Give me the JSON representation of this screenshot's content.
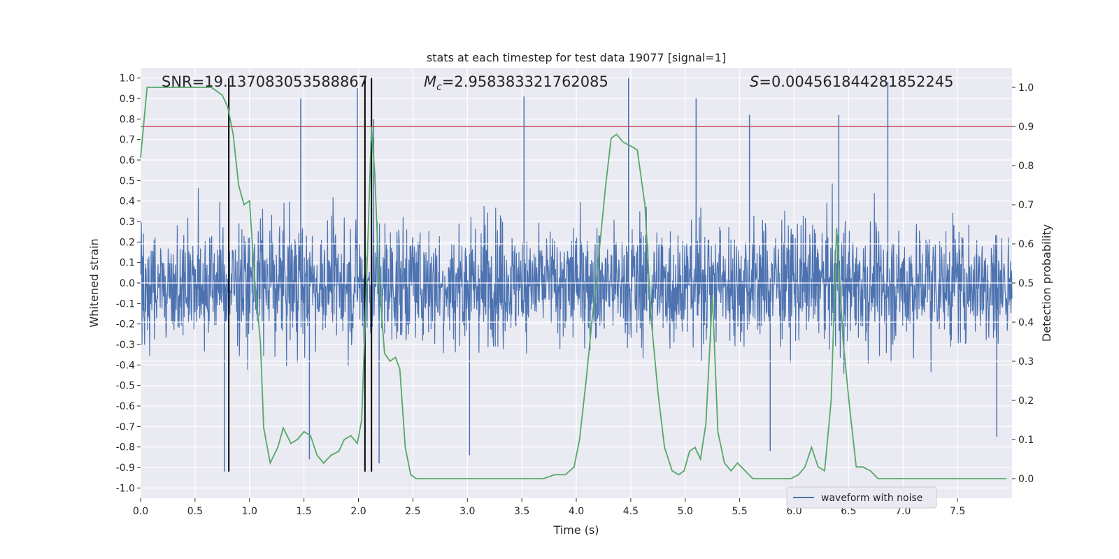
{
  "chart_data": {
    "type": "line",
    "title": "stats at each timestep for test data 19077 [signal=1]",
    "xlabel": "Time (s)",
    "ylabel_left": "Whitened strain",
    "ylabel_right": "Detection probability",
    "xlim": [
      0.0,
      8.0
    ],
    "ylim_left": [
      -1.05,
      1.05
    ],
    "ylim_right": [
      -0.05,
      1.05
    ],
    "x_ticks": [
      "0.0",
      "0.5",
      "1.0",
      "1.5",
      "2.0",
      "2.5",
      "3.0",
      "3.5",
      "4.0",
      "4.5",
      "5.0",
      "5.5",
      "6.0",
      "6.5",
      "7.0",
      "7.5"
    ],
    "x_tick_values": [
      0.0,
      0.5,
      1.0,
      1.5,
      2.0,
      2.5,
      3.0,
      3.5,
      4.0,
      4.5,
      5.0,
      5.5,
      6.0,
      6.5,
      7.0,
      7.5
    ],
    "y_left_ticks": [
      "-1.0",
      "-0.9",
      "-0.8",
      "-0.7",
      "-0.6",
      "-0.5",
      "-0.4",
      "-0.3",
      "-0.2",
      "-0.1",
      "0.0",
      "0.1",
      "0.2",
      "0.3",
      "0.4",
      "0.5",
      "0.6",
      "0.7",
      "0.8",
      "0.9",
      "1.0"
    ],
    "y_left_tick_values": [
      -1.0,
      -0.9,
      -0.8,
      -0.7,
      -0.6,
      -0.5,
      -0.4,
      -0.3,
      -0.2,
      -0.1,
      0.0,
      0.1,
      0.2,
      0.3,
      0.4,
      0.5,
      0.6,
      0.7,
      0.8,
      0.9,
      1.0
    ],
    "y_right_ticks": [
      "0.0",
      "0.1",
      "0.2",
      "0.3",
      "0.4",
      "0.5",
      "0.6",
      "0.7",
      "0.8",
      "0.9",
      "1.0"
    ],
    "y_right_tick_values": [
      0.0,
      0.1,
      0.2,
      0.3,
      0.4,
      0.5,
      0.6,
      0.7,
      0.8,
      0.9,
      1.0
    ],
    "annotations": {
      "snr": "SNR=19.137083053588867",
      "mc_symbol": "M",
      "mc_sub": "c",
      "mc_value": "=2.958383321762085",
      "s_symbol": "S",
      "s_value": "=0.004561844281852245"
    },
    "threshold": {
      "axis": "right",
      "value": 0.9,
      "color": "#c44e52"
    },
    "vertical_lines": {
      "x": [
        0.81,
        2.06,
        2.12
      ],
      "color": "#000000"
    },
    "series": [
      {
        "name": "waveform with noise",
        "axis": "left",
        "color": "#4c72b0",
        "style": "dense-noise",
        "spikes": [
          {
            "x": 0.81,
            "y": 0.93
          },
          {
            "x": 1.47,
            "y": 0.9
          },
          {
            "x": 1.99,
            "y": 0.95
          },
          {
            "x": 2.14,
            "y": 0.8
          },
          {
            "x": 3.52,
            "y": 0.91
          },
          {
            "x": 4.48,
            "y": 1.0
          },
          {
            "x": 5.1,
            "y": 0.9
          },
          {
            "x": 5.59,
            "y": 0.82
          },
          {
            "x": 6.41,
            "y": 0.82
          },
          {
            "x": 6.86,
            "y": 0.98
          },
          {
            "x": 0.77,
            "y": -0.92
          },
          {
            "x": 1.55,
            "y": -0.86
          },
          {
            "x": 2.19,
            "y": -0.88
          },
          {
            "x": 3.02,
            "y": -0.84
          },
          {
            "x": 5.78,
            "y": -0.82
          },
          {
            "x": 7.86,
            "y": -0.75
          }
        ]
      },
      {
        "name": "detection probability",
        "axis": "right",
        "color": "#55a868",
        "x": [
          0.0,
          0.06,
          0.12,
          0.2,
          0.3,
          0.4,
          0.5,
          0.55,
          0.6,
          0.65,
          0.7,
          0.75,
          0.8,
          0.85,
          0.9,
          0.95,
          1.0,
          1.05,
          1.1,
          1.13,
          1.19,
          1.26,
          1.31,
          1.38,
          1.44,
          1.5,
          1.56,
          1.62,
          1.68,
          1.75,
          1.82,
          1.87,
          1.93,
          1.99,
          2.03,
          2.08,
          2.12,
          2.15,
          2.19,
          2.24,
          2.29,
          2.34,
          2.38,
          2.43,
          2.48,
          2.53,
          2.6,
          2.7,
          2.8,
          2.9,
          3.0,
          3.1,
          3.2,
          3.3,
          3.4,
          3.5,
          3.6,
          3.7,
          3.8,
          3.9,
          3.98,
          4.03,
          4.09,
          4.15,
          4.21,
          4.27,
          4.32,
          4.37,
          4.43,
          4.5,
          4.56,
          4.63,
          4.69,
          4.75,
          4.81,
          4.88,
          4.94,
          4.99,
          5.04,
          5.09,
          5.14,
          5.19,
          5.25,
          5.3,
          5.36,
          5.42,
          5.48,
          5.55,
          5.62,
          5.68,
          5.75,
          5.82,
          5.9,
          5.97,
          6.04,
          6.1,
          6.16,
          6.22,
          6.28,
          6.34,
          6.39,
          6.45,
          6.51,
          6.57,
          6.63,
          6.7,
          6.77,
          6.85,
          6.95,
          7.05,
          7.15,
          7.25,
          7.3,
          7.4,
          7.5,
          7.6,
          7.7,
          7.8,
          7.95
        ],
        "y": [
          0.82,
          1.0,
          1.0,
          1.0,
          1.0,
          1.0,
          1.0,
          1.0,
          1.0,
          1.0,
          0.99,
          0.98,
          0.95,
          0.88,
          0.75,
          0.7,
          0.71,
          0.5,
          0.35,
          0.13,
          0.04,
          0.08,
          0.13,
          0.09,
          0.1,
          0.12,
          0.11,
          0.06,
          0.04,
          0.06,
          0.07,
          0.1,
          0.11,
          0.09,
          0.15,
          0.55,
          0.9,
          0.78,
          0.5,
          0.32,
          0.3,
          0.31,
          0.28,
          0.08,
          0.01,
          0.0,
          0.0,
          0.0,
          0.0,
          0.0,
          0.0,
          0.0,
          0.0,
          0.0,
          0.0,
          0.0,
          0.0,
          0.0,
          0.01,
          0.01,
          0.03,
          0.1,
          0.25,
          0.42,
          0.58,
          0.75,
          0.87,
          0.88,
          0.86,
          0.85,
          0.84,
          0.7,
          0.4,
          0.22,
          0.08,
          0.02,
          0.01,
          0.02,
          0.07,
          0.08,
          0.05,
          0.14,
          0.47,
          0.12,
          0.04,
          0.02,
          0.04,
          0.02,
          0.0,
          0.0,
          0.0,
          0.0,
          0.0,
          0.0,
          0.01,
          0.03,
          0.08,
          0.03,
          0.02,
          0.2,
          0.64,
          0.35,
          0.18,
          0.03,
          0.03,
          0.02,
          0.0,
          0.0,
          0.0,
          0.0,
          0.0,
          0.0,
          0.0,
          0.0,
          0.0,
          0.0,
          0.0,
          0.0,
          0.0
        ]
      }
    ],
    "legend": {
      "labels": [
        "waveform with noise"
      ],
      "position": "lower-right"
    }
  }
}
